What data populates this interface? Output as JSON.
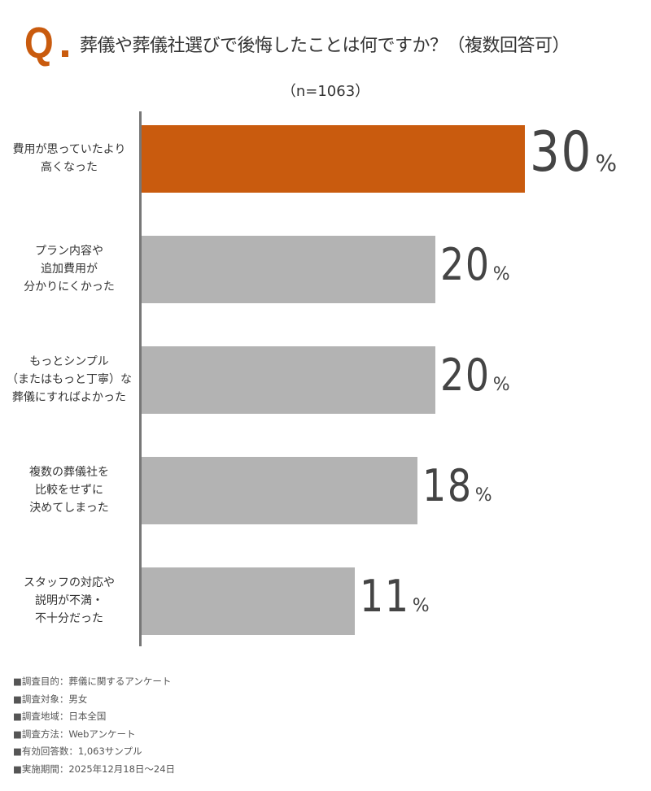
{
  "header": {
    "q_mark": "Q",
    "title": "葬儀や葬儀社選びで後悔したことは何ですか？（複数回答可）",
    "sample": "（n=1063）"
  },
  "chart_data": {
    "type": "bar",
    "orientation": "horizontal",
    "title": "葬儀や葬儀社選びで後悔したことは何ですか？（複数回答可）",
    "subtitle": "（n=1063）",
    "categories": [
      "費用が思っていたより\n高くなった",
      "プラン内容や\n追加費用が\n分かりにくかった",
      "もっとシンプル\n（またはもっと丁寧）な\n葬儀にすればよかった",
      "複数の葬儀社を\n比較をせずに\n決めてしまった",
      "スタッフの対応や\n説明が不満・\n不十分だった"
    ],
    "values": [
      30,
      20,
      20,
      18,
      11
    ],
    "unit": "%",
    "highlight_color": "#c95b0e",
    "bar_color": "#b3b3b3",
    "grid": false
  },
  "notes": [
    "■調査目的：葬儀に関するアンケート",
    "■調査対象：男女",
    "■調査地域：日本全国",
    "■調査方法：Webアンケート",
    "■有効回答数：1,063サンプル",
    "■実施期間：2025年12月18日～24日"
  ]
}
